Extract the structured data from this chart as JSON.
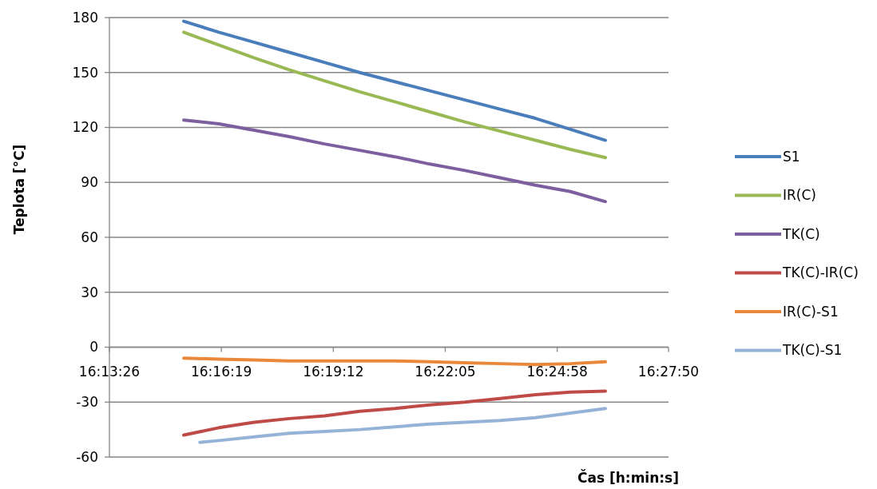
{
  "chart_data": {
    "type": "line",
    "xlabel": "Čas [h:min:s]",
    "ylabel": "Teplota [°C]",
    "x": [
      16.2558,
      16.2709,
      16.286,
      16.3011,
      16.3162,
      16.3313,
      16.3464,
      16.3614,
      16.3765,
      16.3916,
      16.4067,
      16.4218,
      16.4368
    ],
    "xlim": [
      16.22389,
      16.46389
    ],
    "xticks": [
      {
        "value": 16.22389,
        "label": "16:13:26"
      },
      {
        "value": 16.27194,
        "label": "16:16:19"
      },
      {
        "value": 16.32,
        "label": "16:19:12"
      },
      {
        "value": 16.36806,
        "label": "16:22:05"
      },
      {
        "value": 16.41611,
        "label": "16:24:58"
      },
      {
        "value": 16.46389,
        "label": "16:27:50"
      }
    ],
    "ylim": [
      -60,
      180
    ],
    "yticks": [
      -60,
      -30,
      0,
      30,
      60,
      90,
      120,
      150,
      180
    ],
    "grid": "y",
    "legend": "right",
    "marker": "none",
    "line_style": "solid",
    "series": [
      {
        "name": "S1",
        "color": "#4a7ebb",
        "values": [
          178,
          172,
          166.5,
          161,
          155.5,
          150,
          145,
          140,
          135,
          130,
          125,
          119,
          113
        ]
      },
      {
        "name": "IR(C)",
        "color": "#98b954",
        "values": [
          172,
          165,
          158,
          151.5,
          145.5,
          139.5,
          134,
          128.5,
          123,
          118,
          113,
          108,
          103.5
        ]
      },
      {
        "name": "TK(C)",
        "color": "#7d5fa0",
        "values": [
          124,
          122,
          118.5,
          115,
          111,
          107.5,
          104,
          100,
          96.5,
          92.5,
          88.5,
          85,
          79.5
        ]
      },
      {
        "name": "TK(C)-IR(C)",
        "color": "#be4b48",
        "values": [
          -48,
          -44,
          -41,
          -39,
          -37.5,
          -35,
          -33.5,
          -31.5,
          -30,
          -28,
          -26,
          -24.5,
          -24
        ]
      },
      {
        "name": "IR(C)-S1",
        "color": "#e9883a",
        "values": [
          -6,
          -6.5,
          -7,
          -7.5,
          -7.5,
          -7.5,
          -7.5,
          -8,
          -8.5,
          -9,
          -9.5,
          -9,
          -8
        ]
      },
      {
        "name": "TK(C)-S1",
        "color": "#95b3d7",
        "x": [
          16.2627,
          16.2709,
          16.286,
          16.3011,
          16.3162,
          16.3313,
          16.3464,
          16.3614,
          16.3765,
          16.3916,
          16.4067,
          16.4218,
          16.4368
        ],
        "values": [
          -52,
          -51,
          -49,
          -47,
          -46,
          -45,
          -43.5,
          -42,
          -41,
          -40,
          -38.5,
          -36,
          -33.5
        ]
      }
    ]
  }
}
